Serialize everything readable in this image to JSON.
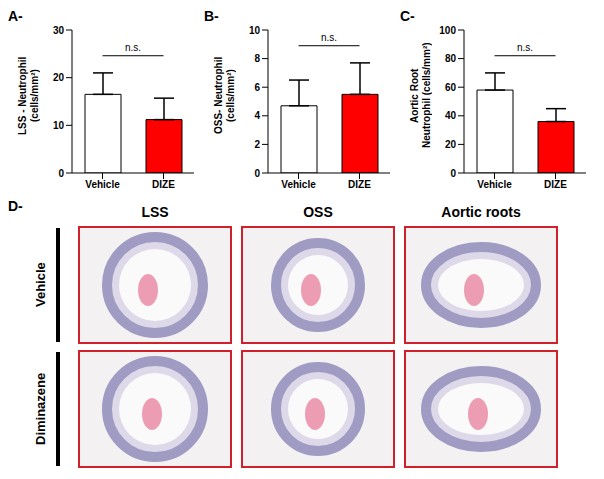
{
  "chart_data": [
    {
      "type": "bar",
      "title": "A-",
      "ylabel": "LSS - Neutrophil\n(cells/mm²)",
      "categories": [
        "Vehicle",
        "DIZE"
      ],
      "values": [
        16.5,
        11.2
      ],
      "errors": [
        4.5,
        4.5
      ],
      "colors": [
        "#ffffff",
        "#ff0000"
      ],
      "ylim": [
        0,
        30
      ],
      "yticks": [
        0,
        10,
        20,
        30
      ],
      "annotations": [
        "n.s."
      ]
    },
    {
      "type": "bar",
      "title": "B-",
      "ylabel": "OSS- Neutrophil\n(cells/mm²)",
      "categories": [
        "Vehicle",
        "DIZE"
      ],
      "values": [
        4.7,
        5.5
      ],
      "errors": [
        1.8,
        2.2
      ],
      "colors": [
        "#ffffff",
        "#ff0000"
      ],
      "ylim": [
        0,
        10
      ],
      "yticks": [
        0,
        2,
        4,
        6,
        8,
        10
      ],
      "annotations": [
        "n.s."
      ]
    },
    {
      "type": "bar",
      "title": "C-",
      "ylabel": "Aortic Root\nNeutrophil (cells/mm²)",
      "categories": [
        "Vehicle",
        "DIZE"
      ],
      "values": [
        58,
        36
      ],
      "errors": [
        12,
        9
      ],
      "colors": [
        "#ffffff",
        "#ff0000"
      ],
      "ylim": [
        0,
        100
      ],
      "yticks": [
        0,
        20,
        40,
        60,
        80,
        100
      ],
      "annotations": [
        "n.s."
      ]
    }
  ],
  "panel_d": {
    "label": "D-",
    "columns": [
      "LSS",
      "OSS",
      "Aortic roots"
    ],
    "rows": [
      "Vehicle",
      "Diminazene"
    ]
  }
}
